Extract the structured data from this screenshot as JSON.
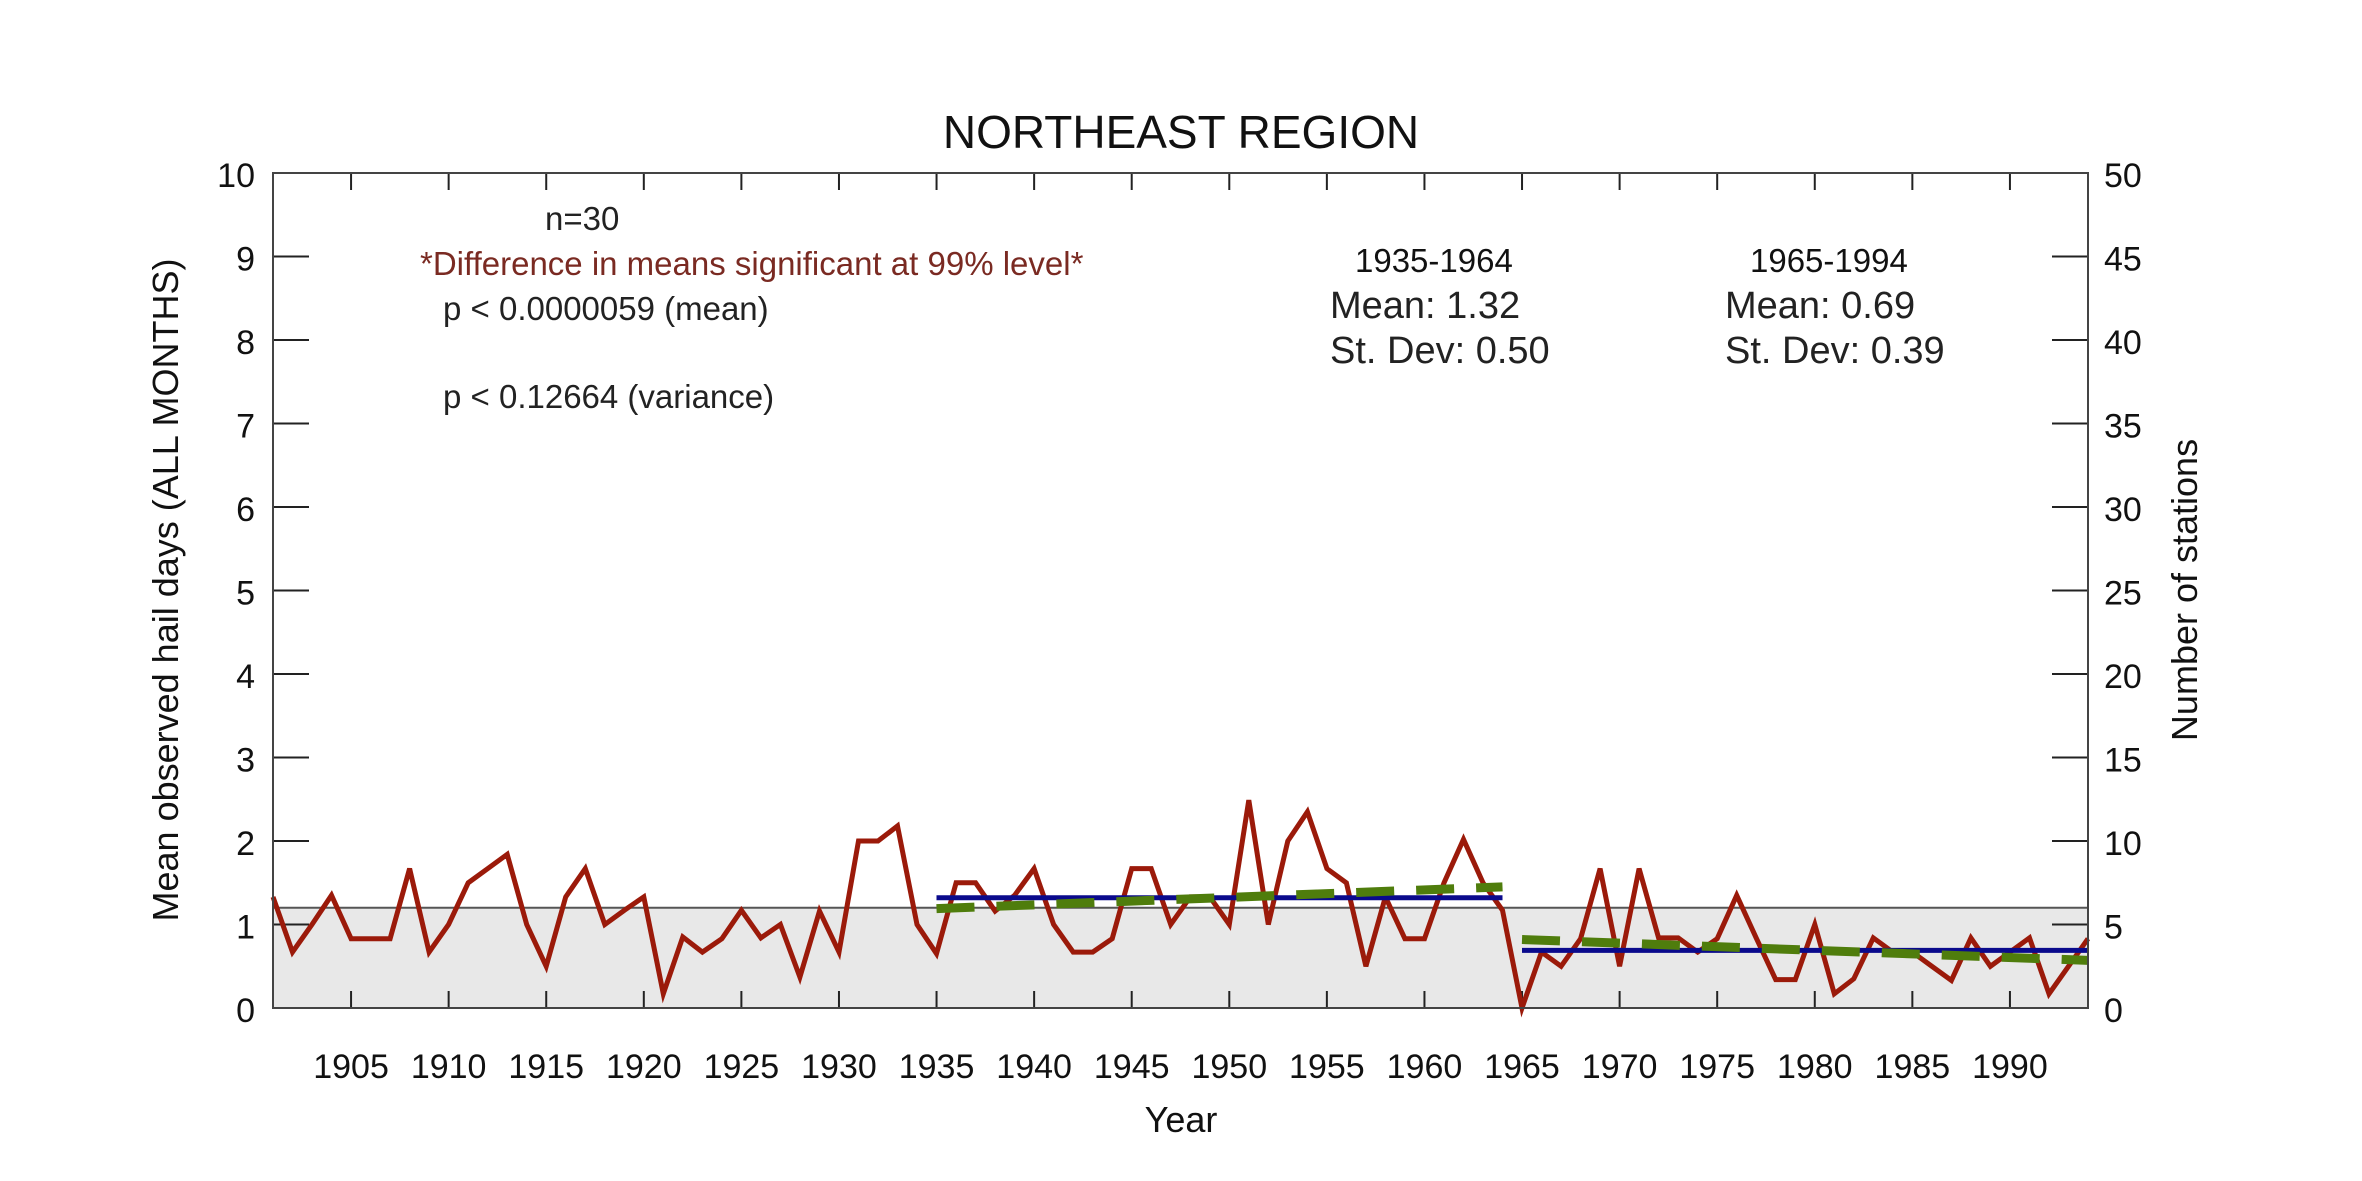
{
  "chart_data": {
    "type": "line",
    "title": "NORTHEAST REGION",
    "xlabel": "Year",
    "ylabel": "Mean observed hail days (ALL MONTHS)",
    "y2label": "Number of stations",
    "xlim": [
      1901,
      1994
    ],
    "ylim": [
      0,
      10
    ],
    "y2lim": [
      0,
      50
    ],
    "grid": false,
    "xticks": [
      1905,
      1910,
      1915,
      1920,
      1925,
      1930,
      1935,
      1940,
      1945,
      1950,
      1955,
      1960,
      1965,
      1970,
      1975,
      1980,
      1985,
      1990
    ],
    "yticks": [
      0,
      1,
      2,
      3,
      4,
      5,
      6,
      7,
      8,
      9,
      10
    ],
    "y2ticks": [
      0,
      5,
      10,
      15,
      20,
      25,
      30,
      35,
      40,
      45,
      50
    ],
    "x": [
      1901,
      1902,
      1903,
      1904,
      1905,
      1906,
      1907,
      1908,
      1909,
      1910,
      1911,
      1912,
      1913,
      1914,
      1915,
      1916,
      1917,
      1918,
      1919,
      1920,
      1921,
      1922,
      1923,
      1924,
      1925,
      1926,
      1927,
      1928,
      1929,
      1930,
      1931,
      1932,
      1933,
      1934,
      1935,
      1936,
      1937,
      1938,
      1939,
      1940,
      1941,
      1942,
      1943,
      1944,
      1945,
      1946,
      1947,
      1948,
      1949,
      1950,
      1951,
      1952,
      1953,
      1954,
      1955,
      1956,
      1957,
      1958,
      1959,
      1960,
      1961,
      1962,
      1963,
      1964,
      1965,
      1966,
      1967,
      1968,
      1969,
      1970,
      1971,
      1972,
      1973,
      1974,
      1975,
      1976,
      1977,
      1978,
      1979,
      1980,
      1981,
      1982,
      1983,
      1984,
      1985,
      1986,
      1987,
      1988,
      1989,
      1990,
      1991,
      1992,
      1993,
      1994
    ],
    "series": [
      {
        "name": "Mean observed hail days",
        "color": "#9b1a0a",
        "style": "solid",
        "values": [
          1.33,
          0.67,
          1.0,
          1.35,
          0.83,
          0.83,
          0.83,
          1.67,
          0.67,
          1.0,
          1.5,
          1.67,
          1.84,
          1.0,
          0.5,
          1.33,
          1.67,
          1.0,
          1.17,
          1.33,
          0.17,
          0.85,
          0.67,
          0.83,
          1.17,
          0.84,
          1.0,
          0.37,
          1.16,
          0.67,
          2.0,
          2.0,
          2.18,
          1.0,
          0.65,
          1.5,
          1.5,
          1.16,
          1.35,
          1.67,
          1.0,
          0.67,
          0.67,
          0.83,
          1.67,
          1.67,
          1.0,
          1.33,
          1.33,
          1.0,
          2.49,
          1.0,
          2.0,
          2.35,
          1.67,
          1.5,
          0.5,
          1.33,
          0.83,
          0.83,
          1.5,
          2.02,
          1.5,
          1.17,
          0.0,
          0.67,
          0.5,
          0.83,
          1.67,
          0.5,
          1.67,
          0.84,
          0.84,
          0.67,
          0.83,
          1.35,
          0.84,
          0.34,
          0.34,
          1.0,
          0.17,
          0.35,
          0.84,
          0.67,
          0.67,
          0.5,
          0.33,
          0.84,
          0.5,
          0.67,
          0.84,
          0.17,
          0.5,
          0.83
        ]
      },
      {
        "name": "Mean 1935-1964",
        "color": "#0a0a8c",
        "style": "solid",
        "x": [
          1935,
          1964
        ],
        "values": [
          1.32,
          1.32
        ]
      },
      {
        "name": "Mean 1965-1994",
        "color": "#0a0a8c",
        "style": "solid",
        "x": [
          1965,
          1994
        ],
        "values": [
          0.69,
          0.69
        ]
      },
      {
        "name": "Trend 1935-1964",
        "color": "#4f7d0c",
        "style": "dashed",
        "x": [
          1935,
          1964
        ],
        "values": [
          1.19,
          1.45
        ]
      },
      {
        "name": "Trend 1965-1994",
        "color": "#4f7d0c",
        "style": "dashed",
        "x": [
          1965,
          1994
        ],
        "values": [
          0.82,
          0.57
        ]
      }
    ],
    "stations": {
      "name": "Number of stations",
      "axis": "right",
      "color": "#e8e8e8",
      "value": 6
    },
    "annotations": {
      "n": "n=30",
      "significance": "*Difference in means significant at 99% level*",
      "p_mean": "p < 0.0000059 (mean)",
      "p_variance": "p < 0.12664 (variance)",
      "period1": {
        "label": "1935-1964",
        "mean": "Mean: 1.32",
        "sd": "St. Dev: 0.50"
      },
      "period2": {
        "label": "1965-1994",
        "mean": "Mean: 0.69",
        "sd": "St. Dev: 0.39"
      }
    }
  }
}
